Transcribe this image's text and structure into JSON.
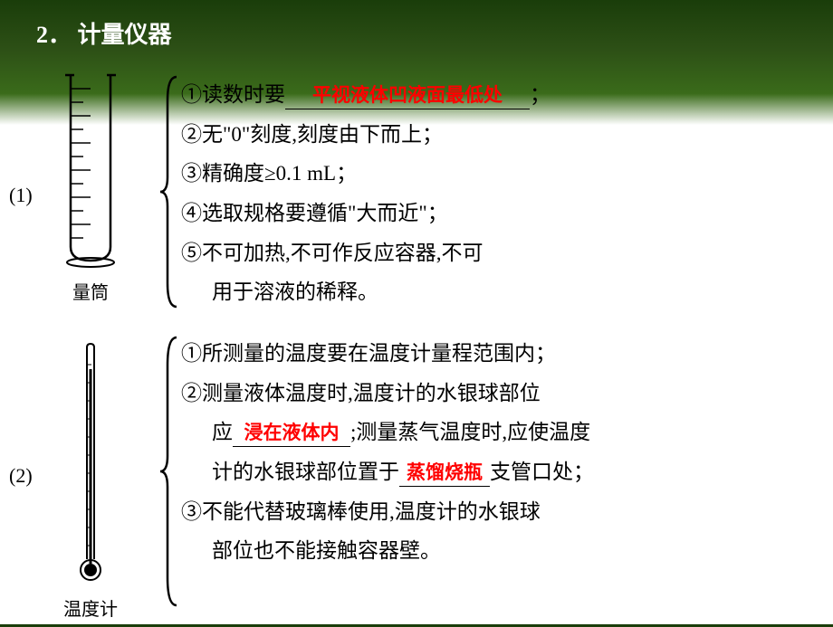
{
  "title_num": "2．",
  "title_text": "计量仪器",
  "section1": {
    "label": "(1)",
    "instrument_name": "量筒",
    "items": [
      {
        "num": "①",
        "pre": "读数时要",
        "answer": "平视液体凹液面最低处",
        "post": "；",
        "has_blank": true,
        "blank_class": "wide-blank"
      },
      {
        "num": "②",
        "text": "无\"0\"刻度,刻度由下而上；"
      },
      {
        "num": "③",
        "text": "精确度≥0.1 mL；"
      },
      {
        "num": "④",
        "text": "选取规格要遵循\"大而近\"；"
      },
      {
        "num": "⑤",
        "text": "不可加热,不可作反应容器,不可"
      },
      {
        "num": "",
        "text": "用于溶液的稀释。",
        "indent": true
      }
    ]
  },
  "section2": {
    "label": "(2)",
    "instrument_name": "温度计",
    "items": [
      {
        "num": "①",
        "text": "所测量的温度要在温度计量程范围内；"
      },
      {
        "num": "②",
        "text": "测量液体温度时,温度计的水银球部位"
      },
      {
        "num": "",
        "pre": "应",
        "answer": "浸在液体内",
        "post": ";测量蒸气温度时,应使温度",
        "has_blank": true,
        "blank_class": "med-blank",
        "indent": true
      },
      {
        "num": "",
        "pre": "计的水银球部位置于",
        "answer": "蒸馏烧瓶",
        "post": "支管口处；",
        "has_blank": true,
        "blank_class": "small-blank",
        "indent": true
      },
      {
        "num": "③",
        "text": "不能代替玻璃棒使用,温度计的水银球"
      },
      {
        "num": "",
        "text": "部位也不能接触容器壁。",
        "indent": true
      }
    ]
  },
  "colors": {
    "answer_color": "#ff0000",
    "text_color": "#000000",
    "title_color": "#ffffff",
    "bg_dark": "#1a3d0a",
    "bg_light": "#ffffff"
  }
}
